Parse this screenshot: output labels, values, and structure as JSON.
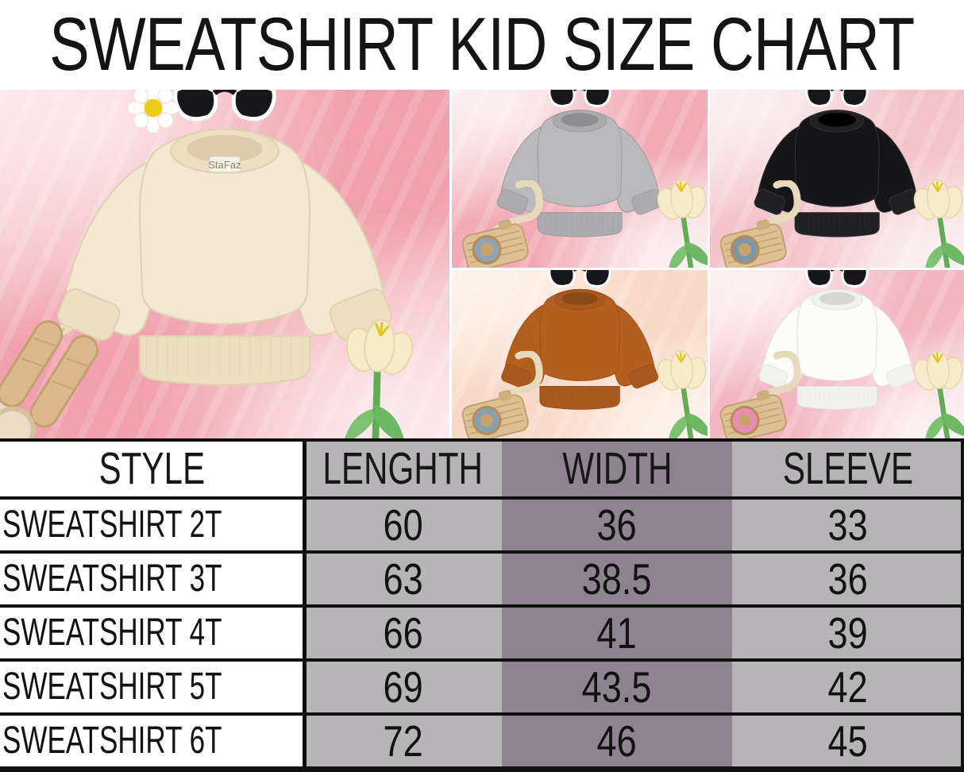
{
  "title": "SWEATSHIRT KID SIZE CHART",
  "chart_data": {
    "type": "table",
    "title": "SWEATSHIRT KID SIZE CHART",
    "columns": [
      "STYLE",
      "LENGHTH",
      "WIDTH",
      "SLEEVE"
    ],
    "rows": [
      [
        "SWEATSHIRT 2T",
        "60",
        "36",
        "33"
      ],
      [
        "SWEATSHIRT 3T",
        "63",
        "38.5",
        "36"
      ],
      [
        "SWEATSHIRT 4T",
        "66",
        "41",
        "39"
      ],
      [
        "SWEATSHIRT 5T",
        "69",
        "43.5",
        "42"
      ],
      [
        "SWEATSHIRT 6T",
        "72",
        "46",
        "45"
      ]
    ]
  },
  "brand_label": "StaFaz",
  "colors": {
    "column_light": "#b7b4b7",
    "column_dark": "#8d8490",
    "table_line": "#101010",
    "title_text": "#141414"
  },
  "photos": [
    {
      "name": "cream-sweatshirt-photo",
      "shirt_color": "#f3e9d3",
      "trim": "#ecdfc2",
      "inner": "#dcccab",
      "edge": "#e0d2b2",
      "bg1": "#f0a0ac",
      "bg2": "#fbe8eb",
      "label": "StaFaz",
      "props": [
        "sunglasses",
        "daisy",
        "bunny",
        "strap",
        "tulip"
      ]
    },
    {
      "name": "gray-sweatshirt-photo",
      "shirt_color": "#b9b8ba",
      "trim": "#acabae",
      "inner": "#8e8d91",
      "edge": "#9d9ca0",
      "bg1": "#f2aab5",
      "bg2": "#fbeff1",
      "camera_lens": "#8fa3b3",
      "props": [
        "sunglasses",
        "camera",
        "tulip"
      ]
    },
    {
      "name": "black-sweatshirt-photo",
      "shirt_color": "#161618",
      "trim": "#202023",
      "inner": "#000000",
      "edge": "#323236",
      "bg1": "#f4c2cb",
      "bg2": "#f9efef",
      "camera_lens": "#7e97a8",
      "props": [
        "sunglasses",
        "camera",
        "tulip"
      ]
    },
    {
      "name": "orange-sweatshirt-photo",
      "shirt_color": "#b35f20",
      "trim": "#a7591e",
      "inner": "#8a4a17",
      "edge": "#9c5018",
      "bg1": "#f8d8c6",
      "bg2": "#fdf2ea",
      "camera_lens": "#86a0b0",
      "props": [
        "sunglasses",
        "camera",
        "tulip"
      ]
    },
    {
      "name": "white-sweatshirt-photo",
      "shirt_color": "#fcfcfa",
      "trim": "#f1f1ed",
      "inner": "#d6d6d2",
      "edge": "#e2e2de",
      "bg1": "#f3b6c1",
      "bg2": "#fcf1f3",
      "camera_lens": "#e98cb4",
      "props": [
        "sunglasses",
        "camera",
        "tulip"
      ]
    }
  ]
}
